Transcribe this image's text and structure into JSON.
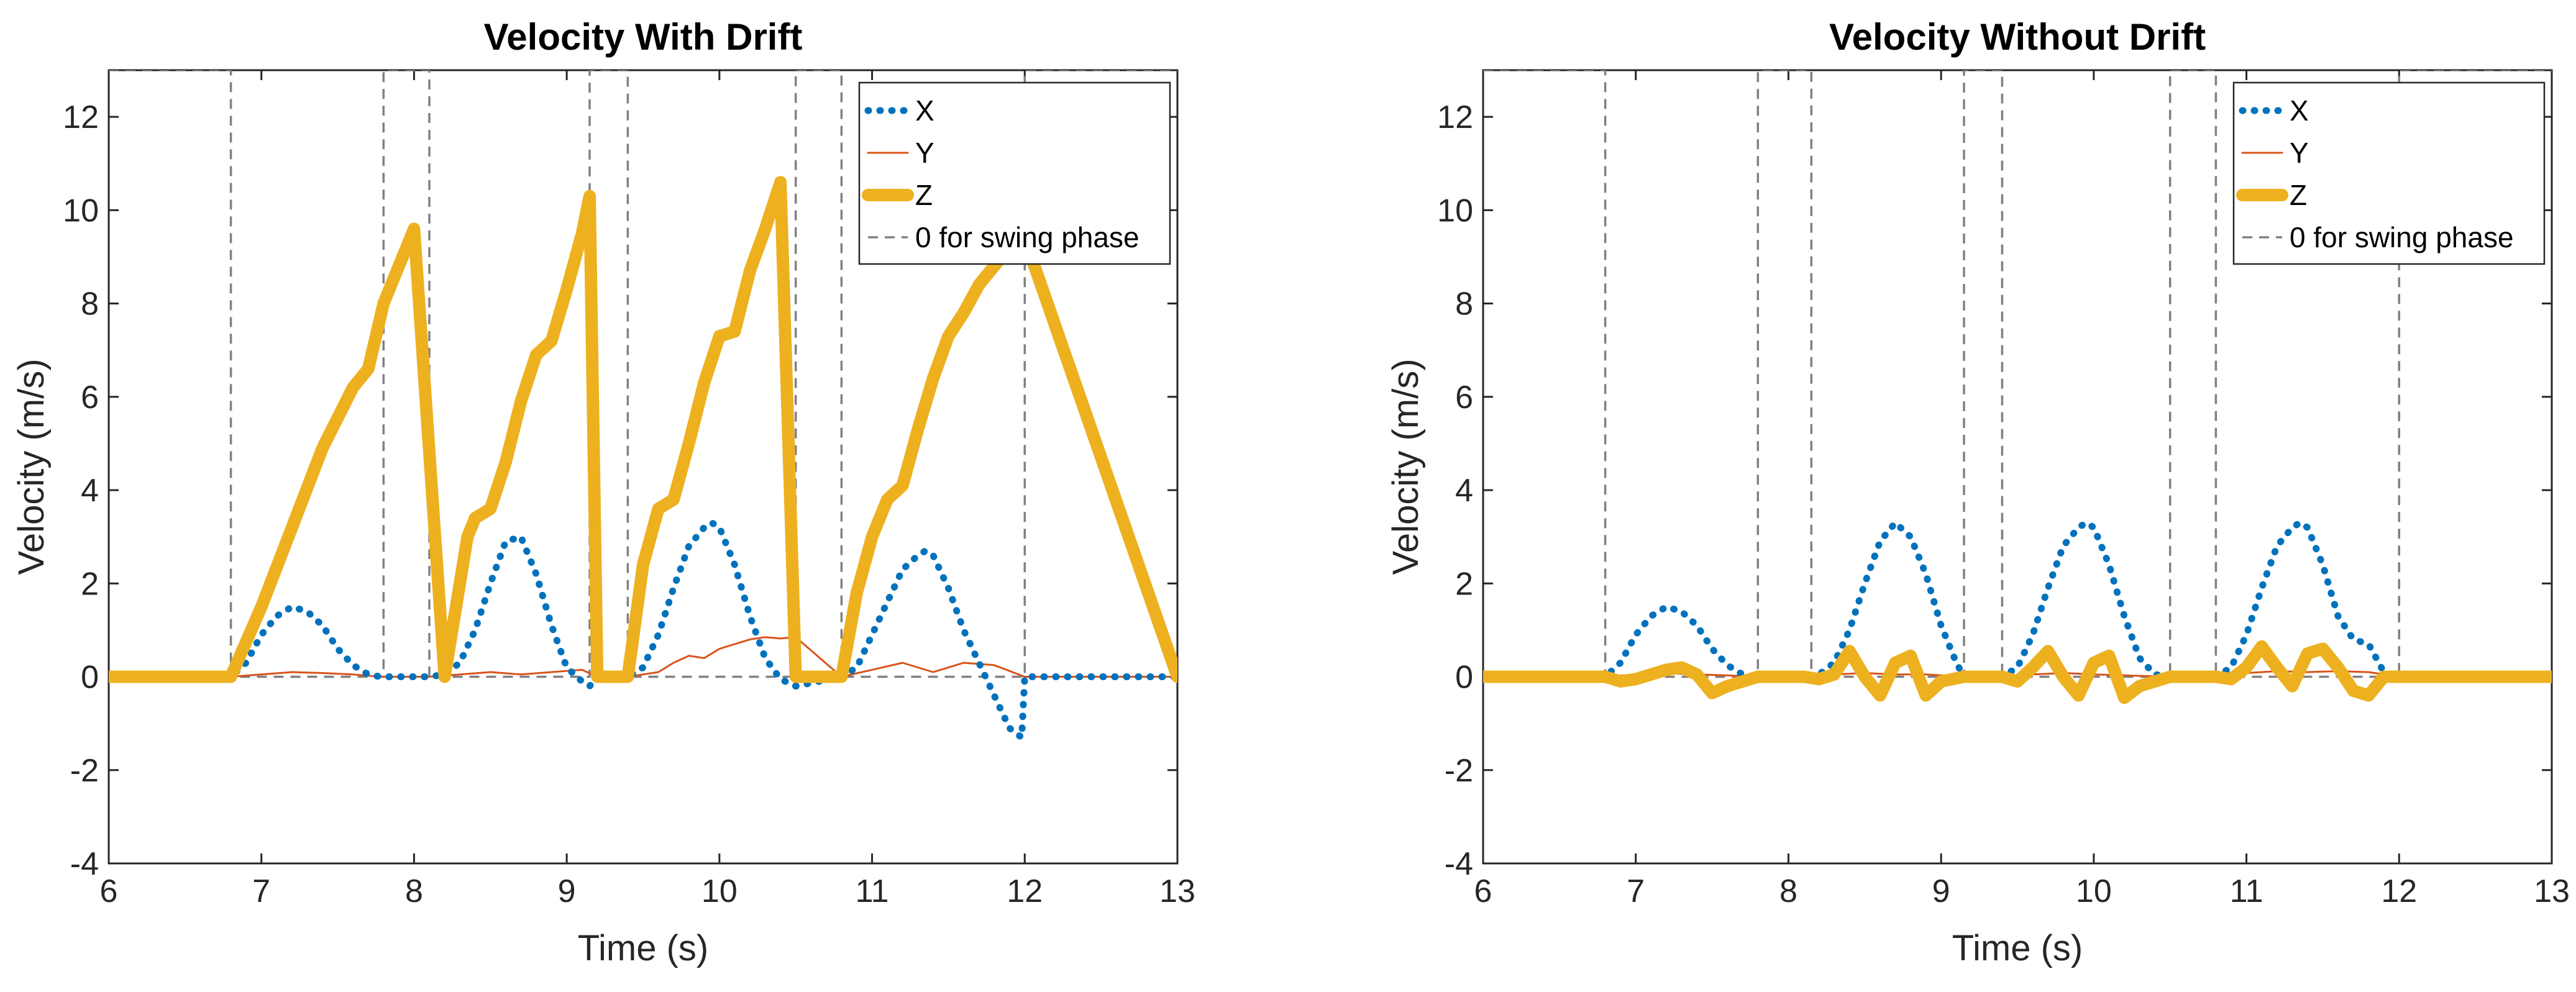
{
  "chart_data": [
    {
      "type": "line",
      "title": "Velocity With Drift",
      "xlabel": "Time (s)",
      "ylabel": "Velocity (m/s)",
      "xlim": [
        6,
        13
      ],
      "ylim": [
        -4,
        13
      ],
      "xticks": [
        6,
        7,
        8,
        9,
        10,
        11,
        12,
        13
      ],
      "yticks": [
        -4,
        -2,
        0,
        2,
        4,
        6,
        8,
        10,
        12
      ],
      "legend_position": "top-right",
      "series": [
        {
          "name": "X",
          "color": "#0072BD",
          "style": "dotted",
          "x": [
            6.0,
            6.8,
            6.9,
            7.0,
            7.1,
            7.2,
            7.3,
            7.4,
            7.5,
            7.6,
            7.7,
            7.78,
            7.8,
            8.1,
            8.2,
            8.3,
            8.4,
            8.5,
            8.6,
            8.7,
            8.8,
            8.9,
            9.0,
            9.1,
            9.15,
            9.2,
            9.4,
            9.5,
            9.6,
            9.7,
            9.8,
            9.9,
            9.95,
            10.0,
            10.1,
            10.2,
            10.3,
            10.4,
            10.5,
            10.8,
            10.9,
            11.0,
            11.1,
            11.2,
            11.3,
            11.35,
            11.4,
            11.5,
            11.6,
            11.7,
            11.8,
            11.9,
            11.98,
            12.0,
            13.0
          ],
          "y": [
            0,
            0,
            0.3,
            0.9,
            1.3,
            1.5,
            1.4,
            1.1,
            0.6,
            0.25,
            0.05,
            0,
            0,
            0,
            0.05,
            0.3,
            1.0,
            2.0,
            2.9,
            3.0,
            2.2,
            1.1,
            0.2,
            -0.1,
            -0.2,
            0,
            0,
            0.2,
            0.9,
            1.9,
            2.8,
            3.2,
            3.3,
            3.2,
            2.4,
            1.3,
            0.4,
            -0.05,
            -0.2,
            0,
            0.2,
            0.9,
            1.6,
            2.3,
            2.6,
            2.7,
            2.6,
            1.9,
            1.0,
            0.3,
            -0.4,
            -1.1,
            -1.3,
            0,
            0
          ]
        },
        {
          "name": "Y",
          "color": "#D95319",
          "style": "thin",
          "x": [
            6.0,
            6.8,
            7.0,
            7.2,
            7.4,
            7.6,
            7.78,
            8.1,
            8.3,
            8.5,
            8.7,
            8.9,
            9.1,
            9.2,
            9.4,
            9.6,
            9.7,
            9.8,
            9.9,
            10.0,
            10.1,
            10.2,
            10.3,
            10.4,
            10.5,
            10.8,
            11.0,
            11.2,
            11.4,
            11.6,
            11.8,
            12.0,
            13.0
          ],
          "y": [
            0,
            0,
            0.05,
            0.1,
            0.08,
            0.05,
            0,
            0,
            0.05,
            0.1,
            0.05,
            0.1,
            0.15,
            0,
            0,
            0.1,
            0.3,
            0.45,
            0.4,
            0.6,
            0.7,
            0.8,
            0.85,
            0.82,
            0.85,
            0,
            0.15,
            0.3,
            0.1,
            0.3,
            0.25,
            0,
            0
          ]
        },
        {
          "name": "Z",
          "color": "#EDB120",
          "style": "thick",
          "x": [
            6.0,
            6.8,
            7.0,
            7.2,
            7.4,
            7.6,
            7.7,
            7.8,
            8.0,
            8.2,
            8.3,
            8.35,
            8.4,
            8.5,
            8.6,
            8.7,
            8.8,
            8.9,
            9.0,
            9.1,
            9.15,
            9.2,
            9.4,
            9.5,
            9.6,
            9.7,
            9.8,
            9.9,
            10.0,
            10.1,
            10.2,
            10.3,
            10.4,
            10.5,
            10.8,
            10.9,
            11.0,
            11.1,
            11.2,
            11.3,
            11.4,
            11.5,
            11.6,
            11.7,
            11.8,
            11.9,
            12.0,
            13.0
          ],
          "y": [
            0,
            0,
            1.5,
            3.2,
            4.9,
            6.2,
            6.6,
            8.0,
            9.6,
            0,
            2.0,
            3.0,
            3.4,
            3.6,
            4.6,
            5.9,
            6.9,
            7.2,
            8.3,
            9.5,
            10.3,
            0,
            0,
            2.4,
            3.6,
            3.8,
            5.0,
            6.3,
            7.3,
            7.4,
            8.7,
            9.6,
            10.6,
            0,
            0,
            1.8,
            3.0,
            3.8,
            4.1,
            5.3,
            6.4,
            7.3,
            7.8,
            8.4,
            8.8,
            9.2,
            9.4,
            0
          ]
        },
        {
          "name": "0 for swing phase",
          "color": "#808080",
          "style": "dashed",
          "x": [
            6.0,
            6.8,
            6.8,
            7.8,
            7.8,
            8.1,
            8.1,
            9.15,
            9.15,
            9.4,
            9.4,
            10.5,
            10.5,
            10.8,
            10.8,
            12.0,
            12.0,
            13.0
          ],
          "y": [
            13,
            13,
            0,
            0,
            13,
            13,
            0,
            0,
            13,
            13,
            0,
            0,
            13,
            13,
            0,
            0,
            13,
            13
          ]
        }
      ]
    },
    {
      "type": "line",
      "title": "Velocity Without Drift",
      "xlabel": "Time (s)",
      "ylabel": "Velocity (m/s)",
      "xlim": [
        6,
        13
      ],
      "ylim": [
        -4,
        13
      ],
      "xticks": [
        6,
        7,
        8,
        9,
        10,
        11,
        12,
        13
      ],
      "yticks": [
        -4,
        -2,
        0,
        2,
        4,
        6,
        8,
        10,
        12
      ],
      "legend_position": "top-right",
      "series": [
        {
          "name": "X",
          "color": "#0072BD",
          "style": "dotted",
          "x": [
            6.0,
            6.8,
            6.9,
            7.0,
            7.1,
            7.2,
            7.3,
            7.4,
            7.5,
            7.6,
            7.7,
            7.8,
            8.1,
            8.2,
            8.3,
            8.4,
            8.5,
            8.6,
            8.7,
            8.8,
            8.9,
            9.0,
            9.1,
            9.15,
            9.4,
            9.5,
            9.6,
            9.7,
            9.8,
            9.9,
            9.95,
            10.0,
            10.1,
            10.2,
            10.3,
            10.4,
            10.5,
            10.8,
            10.9,
            11.0,
            11.1,
            11.2,
            11.3,
            11.35,
            11.4,
            11.5,
            11.6,
            11.7,
            11.8,
            11.9,
            12.0,
            13.0
          ],
          "y": [
            0,
            0,
            0.3,
            0.9,
            1.3,
            1.5,
            1.4,
            1.1,
            0.6,
            0.25,
            0.05,
            0,
            0,
            0.05,
            0.3,
            1.0,
            2.0,
            2.9,
            3.3,
            3.0,
            2.2,
            1.1,
            0.3,
            0,
            0,
            0.2,
            0.9,
            1.9,
            2.8,
            3.2,
            3.3,
            3.2,
            2.4,
            1.3,
            0.4,
            0.05,
            0,
            0,
            0.2,
            0.9,
            1.9,
            2.8,
            3.2,
            3.3,
            3.2,
            2.4,
            1.3,
            0.8,
            0.7,
            0.1,
            0,
            0
          ]
        },
        {
          "name": "Y",
          "color": "#D95319",
          "style": "thin",
          "x": [
            6.0,
            6.8,
            7.0,
            7.2,
            7.4,
            7.6,
            7.8,
            8.1,
            8.3,
            8.5,
            8.7,
            8.9,
            9.15,
            9.4,
            9.6,
            9.8,
            10.0,
            10.2,
            10.5,
            10.8,
            11.0,
            11.2,
            11.4,
            11.6,
            11.8,
            12.0,
            13.0
          ],
          "y": [
            0,
            0,
            0.05,
            0.08,
            0.05,
            0.03,
            0,
            0,
            0.05,
            0.08,
            0.05,
            0.05,
            0,
            0,
            0.05,
            0.08,
            0.05,
            0.03,
            0,
            0,
            0.08,
            0.12,
            0.1,
            0.12,
            0.1,
            0,
            0
          ]
        },
        {
          "name": "Z",
          "color": "#EDB120",
          "style": "thick",
          "x": [
            6.0,
            6.8,
            6.9,
            7.0,
            7.2,
            7.3,
            7.4,
            7.5,
            7.6,
            7.8,
            8.1,
            8.2,
            8.3,
            8.4,
            8.5,
            8.6,
            8.7,
            8.8,
            8.9,
            9.0,
            9.15,
            9.4,
            9.5,
            9.6,
            9.7,
            9.8,
            9.9,
            10.0,
            10.1,
            10.2,
            10.3,
            10.5,
            10.8,
            10.9,
            11.0,
            11.1,
            11.2,
            11.3,
            11.4,
            11.5,
            11.6,
            11.7,
            11.8,
            11.9,
            12.0,
            13.0
          ],
          "y": [
            0,
            0,
            -0.1,
            -0.05,
            0.15,
            0.2,
            0.05,
            -0.35,
            -0.2,
            0,
            0,
            -0.05,
            0.05,
            0.55,
            0.0,
            -0.4,
            0.3,
            0.45,
            -0.4,
            -0.1,
            0,
            0,
            -0.1,
            0.2,
            0.55,
            0.0,
            -0.4,
            0.3,
            0.45,
            -0.45,
            -0.2,
            0,
            0,
            -0.05,
            0.2,
            0.65,
            0.2,
            -0.2,
            0.5,
            0.6,
            0.2,
            -0.3,
            -0.4,
            0,
            0,
            0
          ]
        },
        {
          "name": "0 for swing phase",
          "color": "#808080",
          "style": "dashed",
          "x": [
            6.0,
            6.8,
            6.8,
            7.8,
            7.8,
            8.15,
            8.15,
            9.15,
            9.15,
            9.4,
            9.4,
            10.5,
            10.5,
            10.8,
            10.8,
            12.0,
            12.0,
            13.0
          ],
          "y": [
            13,
            13,
            0,
            0,
            13,
            13,
            0,
            0,
            13,
            13,
            0,
            0,
            13,
            13,
            0,
            0,
            13,
            13
          ]
        }
      ]
    }
  ]
}
